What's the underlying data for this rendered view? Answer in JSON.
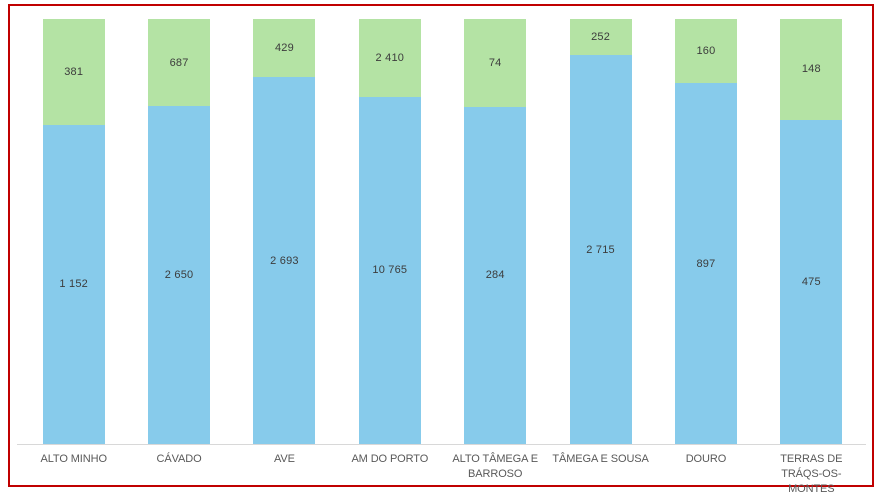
{
  "frame": {
    "border_color": "#c00000"
  },
  "axis": {
    "line_color": "#d8d8d8",
    "label_color": "#595959"
  },
  "chart_data": {
    "type": "bar",
    "stacked": true,
    "percent_stacked": true,
    "title": "",
    "xlabel": "",
    "ylabel": "",
    "legend": "none",
    "grid": false,
    "categories": [
      "ALTO MINHO",
      "CÁVADO",
      "AVE",
      "AM DO PORTO",
      "ALTO TÂMEGA E BARROSO",
      "TÂMEGA E SOUSA",
      "DOURO",
      "TERRAS DE TRÁQS-OS-MONTES"
    ],
    "series": [
      {
        "name": "bottom-blue-series",
        "color": "#87cbeb",
        "values": [
          1152,
          2650,
          2693,
          10765,
          284,
          2715,
          897,
          475
        ],
        "labels": [
          "1 152",
          "2 650",
          "2 693",
          "10 765",
          "284",
          "2 715",
          "897",
          "475"
        ]
      },
      {
        "name": "top-green-series",
        "color": "#b4e3a4",
        "values": [
          381,
          687,
          429,
          2410,
          74,
          252,
          160,
          148
        ],
        "labels": [
          "381",
          "687",
          "429",
          "2 410",
          "74",
          "252",
          "160",
          "148"
        ]
      }
    ],
    "value_label_color": "#3c3c3c"
  }
}
